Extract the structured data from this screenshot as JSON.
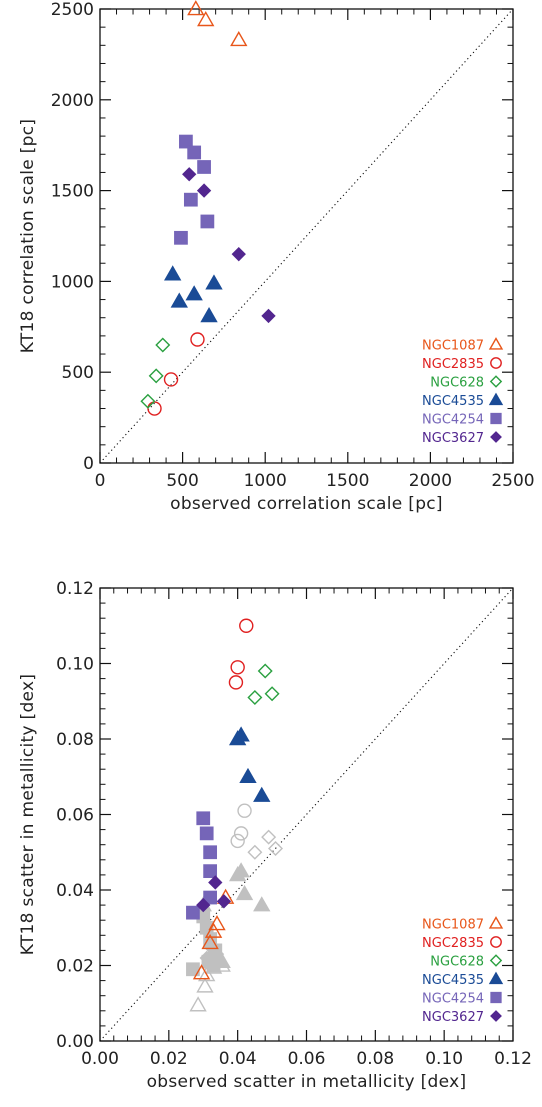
{
  "chart_data": [
    {
      "type": "scatter",
      "xlabel": "observed correlation scale [pc]",
      "ylabel": "KT18 correlation scale [pc]",
      "xlim": [
        0,
        2500
      ],
      "ylim": [
        0,
        2500
      ],
      "xticks": [
        0,
        500,
        1000,
        1500,
        2000,
        2500
      ],
      "yticks": [
        0,
        500,
        1000,
        1500,
        2000,
        2500
      ],
      "x_tick_labels": [
        "0",
        "500",
        "1000",
        "1500",
        "2000",
        "2500"
      ],
      "y_tick_labels": [
        "0",
        "500",
        "1000",
        "1500",
        "2000",
        "2500"
      ],
      "one_to_one_line": true,
      "legend_position": "bottom-right",
      "series": [
        {
          "name": "NGC1087",
          "marker": "triangle-open",
          "color": "#e8561a",
          "points": [
            [
              580,
              2500
            ],
            [
              640,
              2440
            ],
            [
              840,
              2330
            ]
          ]
        },
        {
          "name": "NGC2835",
          "marker": "circle-open",
          "color": "#e02020",
          "points": [
            [
              330,
              300
            ],
            [
              430,
              460
            ],
            [
              590,
              680
            ]
          ]
        },
        {
          "name": "NGC628",
          "marker": "diamond-open",
          "color": "#2aa040",
          "points": [
            [
              290,
              340
            ],
            [
              340,
              480
            ],
            [
              380,
              650
            ]
          ]
        },
        {
          "name": "NGC4535",
          "marker": "triangle-filled",
          "color": "#1a4b96",
          "points": [
            [
              440,
              1040
            ],
            [
              480,
              890
            ],
            [
              570,
              930
            ],
            [
              660,
              810
            ],
            [
              690,
              990
            ]
          ]
        },
        {
          "name": "NGC4254",
          "marker": "square-filled",
          "color": "#7565b8",
          "points": [
            [
              490,
              1240
            ],
            [
              520,
              1770
            ],
            [
              550,
              1450
            ],
            [
              570,
              1710
            ],
            [
              630,
              1630
            ],
            [
              650,
              1330
            ]
          ]
        },
        {
          "name": "NGC3627",
          "marker": "diamond-filled",
          "color": "#52268f",
          "points": [
            [
              540,
              1590
            ],
            [
              630,
              1500
            ],
            [
              840,
              1150
            ],
            [
              1020,
              810
            ]
          ]
        }
      ]
    },
    {
      "type": "scatter",
      "xlabel": "observed scatter in metallicity [dex]",
      "ylabel": "KT18 scatter in metallicity [dex]",
      "xlim": [
        0,
        0.12
      ],
      "ylim": [
        0,
        0.12
      ],
      "xticks": [
        0,
        0.02,
        0.04,
        0.06,
        0.08,
        0.1,
        0.12
      ],
      "yticks": [
        0,
        0.02,
        0.04,
        0.06,
        0.08,
        0.1,
        0.12
      ],
      "x_tick_labels": [
        "0.00",
        "0.02",
        "0.04",
        "0.06",
        "0.08",
        "0.10",
        "0.12"
      ],
      "y_tick_labels": [
        "0.00",
        "0.02",
        "0.04",
        "0.06",
        "0.08",
        "0.10",
        "0.12"
      ],
      "one_to_one_line": true,
      "legend_position": "bottom-right",
      "series": [
        {
          "name": "",
          "marker": "triangle-open",
          "color": "#c0c0c0",
          "points": [
            [
              0.0285,
              0.0095
            ],
            [
              0.0305,
              0.0145
            ],
            [
              0.031,
              0.0175
            ],
            [
              0.033,
              0.0195
            ],
            [
              0.0355,
              0.02
            ]
          ]
        },
        {
          "name": "",
          "marker": "circle-open",
          "color": "#c0c0c0",
          "points": [
            [
              0.04,
              0.053
            ],
            [
              0.041,
              0.055
            ],
            [
              0.042,
              0.061
            ]
          ]
        },
        {
          "name": "",
          "marker": "diamond-open",
          "color": "#c0c0c0",
          "points": [
            [
              0.045,
              0.05
            ],
            [
              0.049,
              0.054
            ],
            [
              0.051,
              0.051
            ]
          ]
        },
        {
          "name": "",
          "marker": "triangle-filled",
          "color": "#c0c0c0",
          "points": [
            [
              0.03,
              0.036
            ],
            [
              0.033,
              0.024
            ],
            [
              0.0355,
              0.021
            ],
            [
              0.04,
              0.044
            ],
            [
              0.041,
              0.045
            ],
            [
              0.042,
              0.039
            ],
            [
              0.047,
              0.036
            ]
          ]
        },
        {
          "name": "",
          "marker": "square-filled",
          "color": "#c0c0c0",
          "points": [
            [
              0.027,
              0.019
            ],
            [
              0.03,
              0.033
            ],
            [
              0.031,
              0.03
            ],
            [
              0.0315,
              0.021
            ],
            [
              0.032,
              0.027
            ],
            [
              0.033,
              0.02
            ],
            [
              0.0335,
              0.024
            ]
          ]
        },
        {
          "name": "",
          "marker": "diamond-filled",
          "color": "#c0c0c0",
          "points": [
            [
              0.031,
              0.022
            ],
            [
              0.032,
              0.025
            ],
            [
              0.034,
              0.023
            ]
          ]
        },
        {
          "name": "NGC1087",
          "marker": "triangle-open",
          "color": "#e8561a",
          "points": [
            [
              0.0295,
              0.018
            ],
            [
              0.032,
              0.026
            ],
            [
              0.033,
              0.029
            ],
            [
              0.034,
              0.031
            ],
            [
              0.0365,
              0.038
            ]
          ]
        },
        {
          "name": "NGC2835",
          "marker": "circle-open",
          "color": "#e02020",
          "points": [
            [
              0.0395,
              0.095
            ],
            [
              0.04,
              0.099
            ],
            [
              0.0425,
              0.11
            ]
          ]
        },
        {
          "name": "NGC628",
          "marker": "diamond-open",
          "color": "#2aa040",
          "points": [
            [
              0.045,
              0.091
            ],
            [
              0.048,
              0.098
            ],
            [
              0.05,
              0.092
            ]
          ]
        },
        {
          "name": "NGC4535",
          "marker": "triangle-filled",
          "color": "#1a4b96",
          "points": [
            [
              0.04,
              0.08
            ],
            [
              0.041,
              0.081
            ],
            [
              0.043,
              0.07
            ],
            [
              0.047,
              0.065
            ]
          ]
        },
        {
          "name": "NGC4254",
          "marker": "square-filled",
          "color": "#7565b8",
          "points": [
            [
              0.027,
              0.034
            ],
            [
              0.03,
              0.059
            ],
            [
              0.031,
              0.055
            ],
            [
              0.032,
              0.05
            ],
            [
              0.032,
              0.045
            ],
            [
              0.032,
              0.038
            ]
          ]
        },
        {
          "name": "NGC3627",
          "marker": "diamond-filled",
          "color": "#52268f",
          "points": [
            [
              0.03,
              0.036
            ],
            [
              0.0335,
              0.042
            ],
            [
              0.036,
              0.037
            ]
          ]
        }
      ]
    }
  ]
}
